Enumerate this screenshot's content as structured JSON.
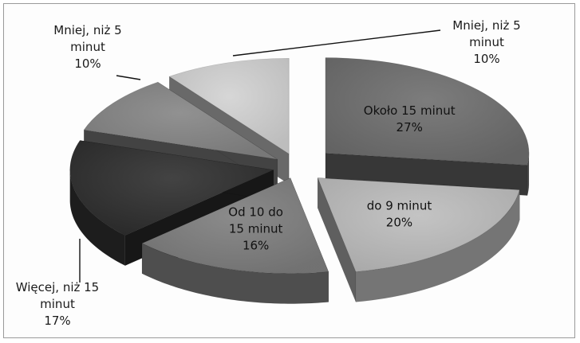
{
  "chart_data": {
    "type": "pie",
    "variant": "3d-exploded",
    "title": "",
    "slices": [
      {
        "label_lines": [
          "Około 15 minut",
          "27%"
        ],
        "value": 27,
        "color": "#6e6e6e",
        "label_position": "inside"
      },
      {
        "label_lines": [
          "do 9 minut",
          "20%"
        ],
        "value": 20,
        "color": "#bdbdbd",
        "label_position": "inside"
      },
      {
        "label_lines": [
          "Od 10 do",
          "15 minut",
          "16%"
        ],
        "value": 16,
        "color": "#7e7e7e",
        "label_position": "inside"
      },
      {
        "label_lines": [
          "Więcej, niż 15",
          "minut",
          "17%"
        ],
        "value": 17,
        "color": "#2e2e2e",
        "label_position": "outside"
      },
      {
        "label_lines": [
          "Mniej, niż 5",
          "minut",
          "10%"
        ],
        "value": 10,
        "color": "#858585",
        "label_position": "outside"
      },
      {
        "label_lines": [
          "Mniej, niż 5",
          "minut",
          "10%"
        ],
        "value": 10,
        "color": "#d2d2d2",
        "label_position": "outside"
      }
    ],
    "legend": "none"
  }
}
